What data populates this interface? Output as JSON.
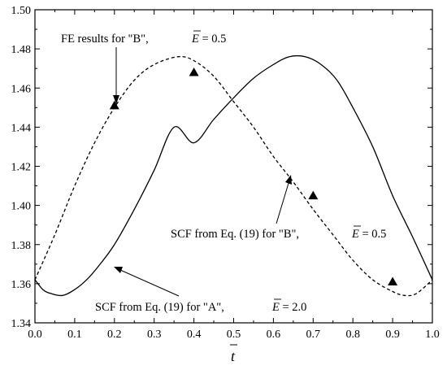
{
  "chart_data": {
    "type": "line",
    "title": "",
    "xlabel": "t",
    "ylabel": "",
    "xlim": [
      0.0,
      1.0
    ],
    "ylim": [
      1.34,
      1.5
    ],
    "x_ticks": [
      "0.0",
      "0.1",
      "0.2",
      "0.3",
      "0.4",
      "0.5",
      "0.6",
      "0.7",
      "0.8",
      "0.9",
      "1.0"
    ],
    "y_ticks": [
      "1.34",
      "1.36",
      "1.38",
      "1.40",
      "1.42",
      "1.44",
      "1.46",
      "1.48",
      "1.50"
    ],
    "grid": false,
    "series": [
      {
        "style": "solid",
        "x": [
          0.0,
          0.02,
          0.04,
          0.07,
          0.1,
          0.13,
          0.16,
          0.2,
          0.25,
          0.3,
          0.35,
          0.4,
          0.45,
          0.5,
          0.55,
          0.6,
          0.64,
          0.68,
          0.72,
          0.76,
          0.8,
          0.85,
          0.9,
          0.95,
          1.0
        ],
        "y": [
          1.362,
          1.357,
          1.355,
          1.354,
          1.357,
          1.362,
          1.369,
          1.38,
          1.398,
          1.418,
          1.44,
          1.432,
          1.444,
          1.455,
          1.465,
          1.472,
          1.476,
          1.476,
          1.472,
          1.464,
          1.45,
          1.43,
          1.405,
          1.384,
          1.362
        ]
      },
      {
        "style": "dashed",
        "x": [
          0.0,
          0.05,
          0.1,
          0.15,
          0.2,
          0.25,
          0.3,
          0.36,
          0.4,
          0.45,
          0.5,
          0.55,
          0.6,
          0.65,
          0.7,
          0.75,
          0.8,
          0.85,
          0.9,
          0.93,
          0.96,
          1.0
        ],
        "y": [
          1.362,
          1.385,
          1.41,
          1.432,
          1.45,
          1.464,
          1.472,
          1.476,
          1.474,
          1.466,
          1.453,
          1.44,
          1.425,
          1.412,
          1.398,
          1.385,
          1.372,
          1.362,
          1.356,
          1.354,
          1.355,
          1.362
        ]
      }
    ],
    "markers": {
      "shape": "triangle",
      "x": [
        0.2,
        0.4,
        0.7,
        0.9
      ],
      "y": [
        1.451,
        1.468,
        1.405,
        1.361
      ]
    },
    "annotations": [
      {
        "prefix": "FE results for \"B\",",
        "symbol": "E",
        "value": " = 0.5"
      },
      {
        "prefix": "SCF from Eq. (19) for \"B\",",
        "symbol": "E",
        "value": " = 0.5"
      },
      {
        "prefix": "SCF from Eq. (19) for \"A\",",
        "symbol": "E",
        "value": " = 2.0"
      }
    ]
  }
}
